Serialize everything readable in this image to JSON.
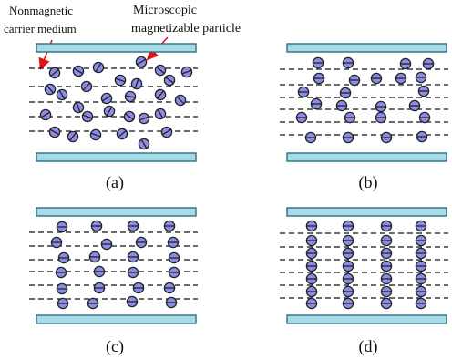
{
  "annotations": {
    "carrier": [
      "Nonmagnetic",
      "carrier medium"
    ],
    "particle": [
      "Microscopic",
      "magnetizable particle"
    ]
  },
  "colors": {
    "plate_fill": "#a9dbe7",
    "plate_stroke": "#2a6f86",
    "particle_fill": "#8c8ce6",
    "particle_stroke": "#222222",
    "arrow": "#e0121a",
    "field_line": "#111111"
  },
  "panels": [
    {
      "id": "a",
      "label": "(a)",
      "state": "random"
    },
    {
      "id": "b",
      "label": "(b)",
      "state": "partially-aligned"
    },
    {
      "id": "c",
      "label": "(c)",
      "state": "mostly-chained"
    },
    {
      "id": "d",
      "label": "(d)",
      "state": "fully-chained"
    }
  ]
}
